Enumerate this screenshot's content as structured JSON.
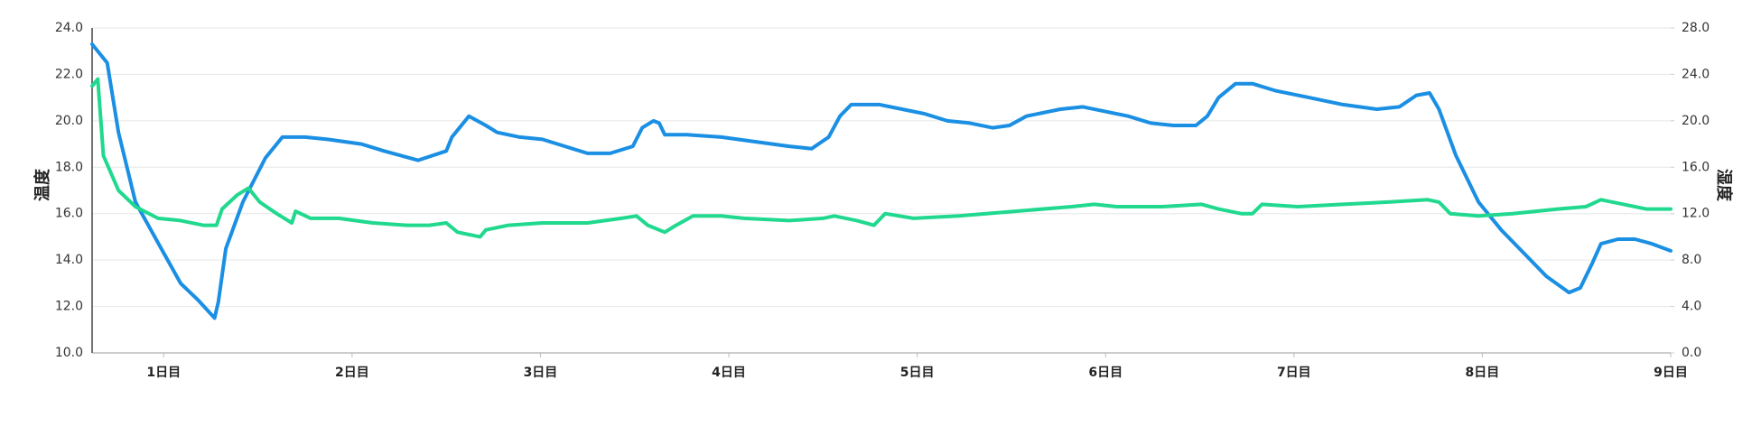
{
  "chart_data": {
    "type": "line",
    "y_label": "温度",
    "y2_label": "湿度",
    "xlim": [
      0.62,
      9
    ],
    "xticks": [
      {
        "value": 1,
        "label": "1日目"
      },
      {
        "value": 2,
        "label": "2日目"
      },
      {
        "value": 3,
        "label": "3日目"
      },
      {
        "value": 4,
        "label": "4日目"
      },
      {
        "value": 5,
        "label": "5日目"
      },
      {
        "value": 6,
        "label": "6日目"
      },
      {
        "value": 7,
        "label": "7日目"
      },
      {
        "value": 8,
        "label": "8日目"
      },
      {
        "value": 9,
        "label": "9日目"
      }
    ],
    "ylim": [
      10,
      24
    ],
    "yticks": [
      {
        "value": 10,
        "label": "10.0"
      },
      {
        "value": 12,
        "label": "12.0"
      },
      {
        "value": 14,
        "label": "14.0"
      },
      {
        "value": 16,
        "label": "16.0"
      },
      {
        "value": 18,
        "label": "18.0"
      },
      {
        "value": 20,
        "label": "20.0"
      },
      {
        "value": 22,
        "label": "22.0"
      },
      {
        "value": 24,
        "label": "24.0"
      }
    ],
    "y2lim": [
      0,
      28
    ],
    "y2ticks": [
      {
        "value": 0,
        "label": "0.0"
      },
      {
        "value": 4,
        "label": "4.0"
      },
      {
        "value": 8,
        "label": "8.0"
      },
      {
        "value": 12,
        "label": "12.0"
      },
      {
        "value": 16,
        "label": "16.0"
      },
      {
        "value": 20,
        "label": "20.0"
      },
      {
        "value": 24,
        "label": "24.0"
      },
      {
        "value": 28,
        "label": "28.0"
      }
    ],
    "grid": true,
    "series": [
      {
        "color": "#1a8fe3",
        "axis": "y",
        "x": [
          0.62,
          0.7,
          0.76,
          0.85,
          1.0,
          1.09,
          1.18,
          1.27,
          1.29,
          1.33,
          1.42,
          1.54,
          1.63,
          1.75,
          1.87,
          2.05,
          2.17,
          2.35,
          2.5,
          2.53,
          2.62,
          2.71,
          2.77,
          2.89,
          3.01,
          3.13,
          3.25,
          3.37,
          3.49,
          3.54,
          3.6,
          3.63,
          3.66,
          3.78,
          3.96,
          4.14,
          4.32,
          4.44,
          4.53,
          4.59,
          4.65,
          4.8,
          4.92,
          5.04,
          5.16,
          5.28,
          5.4,
          5.49,
          5.58,
          5.76,
          5.88,
          6.0,
          6.12,
          6.24,
          6.36,
          6.48,
          6.54,
          6.6,
          6.69,
          6.78,
          6.9,
          7.08,
          7.26,
          7.44,
          7.56,
          7.65,
          7.72,
          7.77,
          7.86,
          7.98,
          8.1,
          8.22,
          8.34,
          8.46,
          8.52,
          8.58,
          8.63,
          8.72,
          8.81,
          8.9,
          9.0
        ],
        "values": [
          23.3,
          22.5,
          19.5,
          16.5,
          14.3,
          13.0,
          12.3,
          11.5,
          12.2,
          14.5,
          16.5,
          18.4,
          19.3,
          19.3,
          19.2,
          19.0,
          18.7,
          18.3,
          18.7,
          19.3,
          20.2,
          19.8,
          19.5,
          19.3,
          19.2,
          18.9,
          18.6,
          18.6,
          18.9,
          19.7,
          20.0,
          19.9,
          19.4,
          19.4,
          19.3,
          19.1,
          18.9,
          18.8,
          19.3,
          20.2,
          20.7,
          20.7,
          20.5,
          20.3,
          20.0,
          19.9,
          19.7,
          19.8,
          20.2,
          20.5,
          20.6,
          20.4,
          20.2,
          19.9,
          19.8,
          19.8,
          20.2,
          21.0,
          21.6,
          21.6,
          21.3,
          21.0,
          20.7,
          20.5,
          20.6,
          21.1,
          21.2,
          20.5,
          18.5,
          16.5,
          15.3,
          14.3,
          13.3,
          12.6,
          12.8,
          13.8,
          14.7,
          14.9,
          14.9,
          14.7,
          14.4
        ]
      },
      {
        "color": "#20d98e",
        "axis": "y2",
        "x": [
          0.62,
          0.65,
          0.68,
          0.76,
          0.85,
          0.97,
          1.09,
          1.21,
          1.28,
          1.31,
          1.39,
          1.45,
          1.51,
          1.6,
          1.68,
          1.7,
          1.78,
          1.93,
          2.11,
          2.29,
          2.41,
          2.5,
          2.56,
          2.68,
          2.71,
          2.83,
          3.01,
          3.25,
          3.43,
          3.51,
          3.57,
          3.66,
          3.72,
          3.81,
          3.96,
          4.08,
          4.32,
          4.5,
          4.56,
          4.68,
          4.77,
          4.83,
          4.98,
          5.22,
          5.52,
          5.82,
          5.94,
          6.06,
          6.3,
          6.51,
          6.6,
          6.72,
          6.78,
          6.83,
          7.02,
          7.26,
          7.5,
          7.71,
          7.77,
          7.83,
          7.98,
          8.16,
          8.4,
          8.55,
          8.63,
          8.75,
          8.87,
          9.0
        ],
        "values": [
          23.0,
          23.6,
          17.0,
          14.0,
          12.6,
          11.6,
          11.4,
          11.0,
          11.0,
          12.4,
          13.6,
          14.2,
          13.0,
          12.0,
          11.2,
          12.2,
          11.6,
          11.6,
          11.2,
          11.0,
          11.0,
          11.2,
          10.4,
          10.0,
          10.6,
          11.0,
          11.2,
          11.2,
          11.6,
          11.8,
          11.0,
          10.4,
          11.0,
          11.8,
          11.8,
          11.6,
          11.4,
          11.6,
          11.8,
          11.4,
          11.0,
          12.0,
          11.6,
          11.8,
          12.2,
          12.6,
          12.8,
          12.6,
          12.6,
          12.8,
          12.4,
          12.0,
          12.0,
          12.8,
          12.6,
          12.8,
          13.0,
          13.2,
          13.0,
          12.0,
          11.8,
          12.0,
          12.4,
          12.6,
          13.2,
          12.8,
          12.4,
          12.4
        ]
      }
    ]
  }
}
